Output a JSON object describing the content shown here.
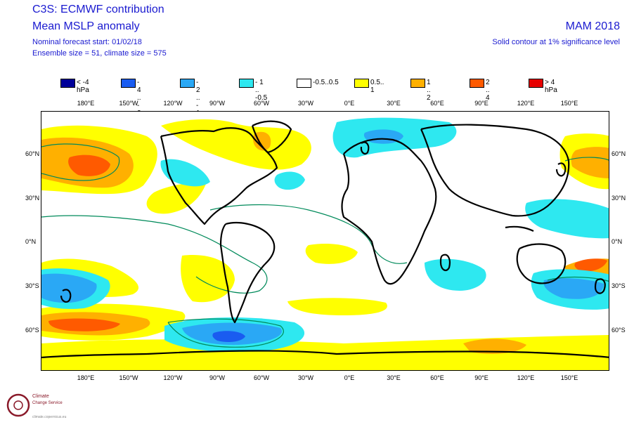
{
  "header": {
    "title": "C3S: ECMWF contribution",
    "subtitle": "Mean MSLP anomaly",
    "forecast_start": "Nominal forecast start: 01/02/18",
    "ensemble": "Ensemble size = 51, climate size = 575",
    "season": "MAM 2018",
    "significance": "Solid contour at 1% significance level"
  },
  "legend": [
    {
      "label": "< -4 hPa",
      "color": "#000099"
    },
    {
      "label": "- 4 .. - 2",
      "color": "#1a5cf0"
    },
    {
      "label": "- 2 .. - 1",
      "color": "#2aa8f5"
    },
    {
      "label": "- 1 .. -0.5",
      "color": "#2ee8f0"
    },
    {
      "label": "-0.5..0.5",
      "color": "#ffffff"
    },
    {
      "label": "0.5.. 1",
      "color": "#ffff00"
    },
    {
      "label": "1 .. 2",
      "color": "#ffb000"
    },
    {
      "label": "2 .. 4",
      "color": "#ff5a00"
    },
    {
      "label": "> 4 hPa",
      "color": "#e60000"
    }
  ],
  "x_ticks": [
    "180°E",
    "150°W",
    "120°W",
    "90°W",
    "60°W",
    "30°W",
    "0°E",
    "30°E",
    "60°E",
    "90°E",
    "120°E",
    "150°E"
  ],
  "y_ticks": [
    "60°N",
    "30°N",
    "0°N",
    "30°S",
    "60°S"
  ],
  "logo": {
    "line1": "Climate",
    "line2": "Change Service",
    "line3": "climate.copernicus.eu"
  },
  "colors": {
    "text": "#1a1ad0",
    "contour": "#008a5a",
    "coast": "#000000"
  }
}
